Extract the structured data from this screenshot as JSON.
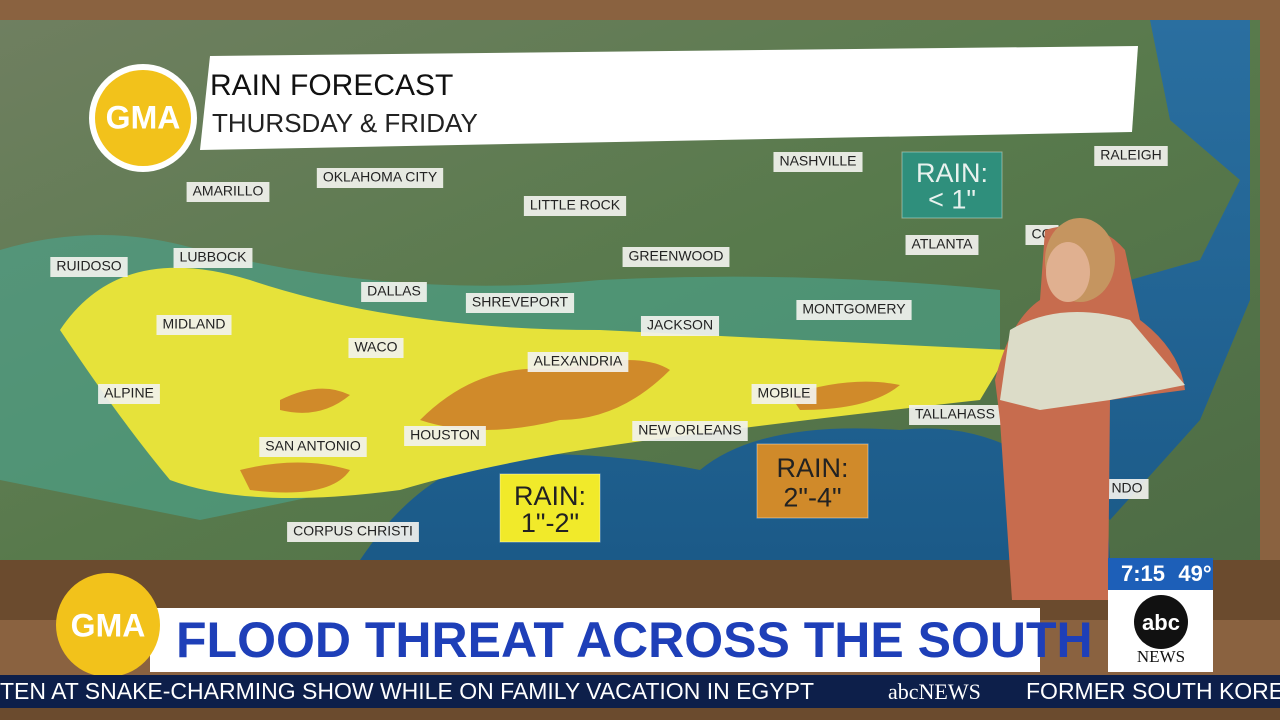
{
  "logo": "GMA",
  "header": {
    "title": "RAIN FORECAST",
    "subtitle": "THURSDAY & FRIDAY"
  },
  "cities": [
    "AMARILLO",
    "OKLAHOMA CITY",
    "LITTLE ROCK",
    "NASHVILLE",
    "RALEIGH",
    "RUIDOSO",
    "LUBBOCK",
    "GREENWOOD",
    "ATLANTA",
    "CO",
    "DALLAS",
    "SHREVEPORT",
    "MONTGOMERY",
    "MIDLAND",
    "JACKSON",
    "WACO",
    "ALEXANDRIA",
    "ALPINE",
    "MOBILE",
    "TALLAHASS",
    "SAN ANTONIO",
    "HOUSTON",
    "NEW ORLEANS",
    "NDO",
    "CORPUS CHRISTI"
  ],
  "rain_labels": [
    {
      "heading": "RAIN:",
      "amount": "< 1\""
    },
    {
      "heading": "RAIN:",
      "amount": "1\"-2\""
    },
    {
      "heading": "RAIN:",
      "amount": "2\"-4\""
    }
  ],
  "lower_third": {
    "logo": "GMA",
    "headline": "FLOOD THREAT ACROSS THE SOUTH"
  },
  "bug": {
    "time": "7:15",
    "temperature": "49°",
    "network": "abc",
    "division": "NEWS"
  },
  "ticker": [
    "TEN AT SNAKE-CHARMING SHOW WHILE ON FAMILY VACATION IN EGYPT",
    "abcNEWS",
    "FORMER SOUTH KORE"
  ]
}
